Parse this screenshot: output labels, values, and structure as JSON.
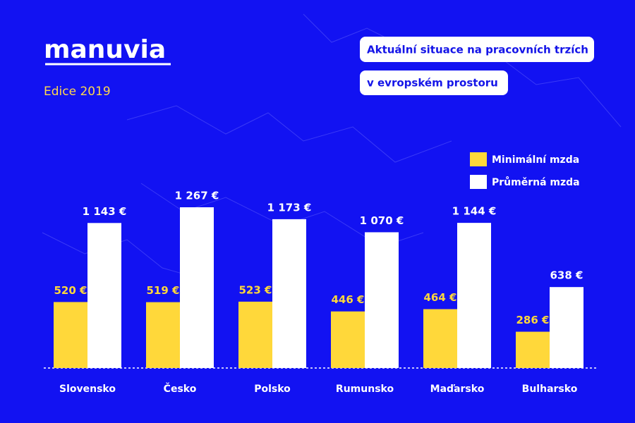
{
  "brand": "manuvia",
  "edition": "Edice 2019",
  "chart_data": {
    "type": "bar",
    "title": "Aktuální situace na pracovních trzích",
    "subtitle": "v evropském prostoru",
    "categories": [
      "Slovensko",
      "Česko",
      "Polsko",
      "Rumunsko",
      "Maďarsko",
      "Bulharsko"
    ],
    "series": [
      {
        "name": "Minimální mzda",
        "color": "#ffd83a",
        "values": [
          520,
          519,
          523,
          446,
          464,
          286
        ],
        "value_labels": [
          "520 €",
          "519 €",
          "523 €",
          "446 €",
          "464 €",
          "286 €"
        ]
      },
      {
        "name": "Průměrná mzda",
        "color": "#ffffff",
        "values": [
          1143,
          1267,
          1173,
          1070,
          1144,
          638
        ],
        "value_labels": [
          "1 143 €",
          "1 267 €",
          "1 173 €",
          "1 070 €",
          "1 144 €",
          "638 €"
        ]
      }
    ]
  }
}
